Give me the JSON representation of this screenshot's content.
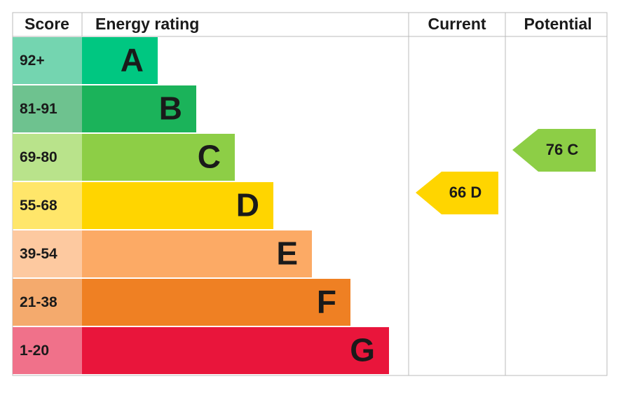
{
  "header": {
    "score": "Score",
    "energy_rating": "Energy rating",
    "current": "Current",
    "potential": "Potential"
  },
  "bands": [
    {
      "score": "92+",
      "letter": "A",
      "color": "#00c781",
      "score_color": "#74d5b0"
    },
    {
      "score": "81-91",
      "letter": "B",
      "color": "#1bb35a",
      "score_color": "#6ec28f"
    },
    {
      "score": "69-80",
      "letter": "C",
      "color": "#8dce46",
      "score_color": "#b9e38b"
    },
    {
      "score": "55-68",
      "letter": "D",
      "color": "#ffd500",
      "score_color": "#ffe66a"
    },
    {
      "score": "39-54",
      "letter": "E",
      "color": "#fcaa65",
      "score_color": "#fdc9a0"
    },
    {
      "score": "21-38",
      "letter": "F",
      "color": "#ef8023",
      "score_color": "#f4aa6d"
    },
    {
      "score": "1-20",
      "letter": "G",
      "color": "#e9153b",
      "score_color": "#f0718a"
    }
  ],
  "current": {
    "label": "66 D",
    "color": "#ffd500"
  },
  "potential": {
    "label": "76 C",
    "color": "#8dce46"
  }
}
